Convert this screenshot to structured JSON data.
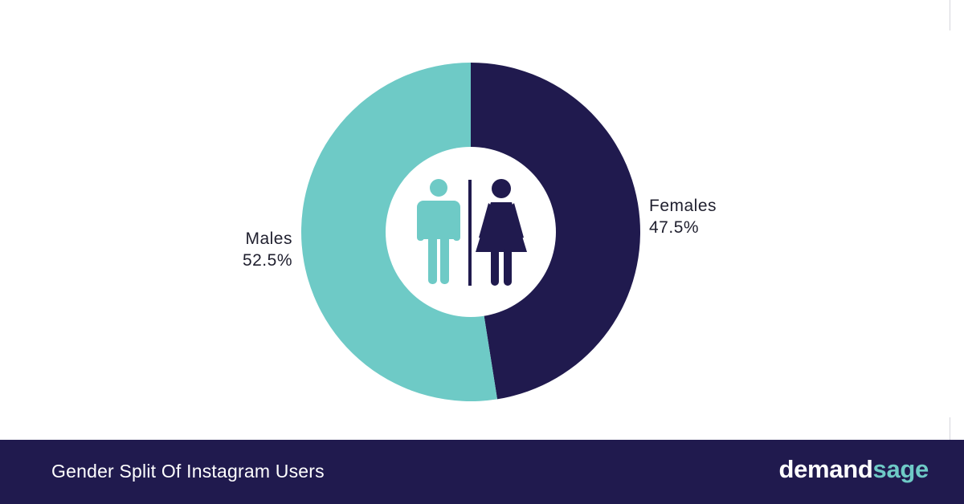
{
  "chart_data": {
    "type": "pie",
    "title": "Gender Split Of Instagram Users",
    "slices": [
      {
        "label": "Males",
        "value": 52.5,
        "display": "52.5%",
        "color": "#6ecac6"
      },
      {
        "label": "Females",
        "value": 47.5,
        "display": "47.5%",
        "color": "#201a4e"
      }
    ],
    "donut": true,
    "center_icons": [
      "male-figure-icon",
      "female-figure-icon"
    ]
  },
  "footer": {
    "title": "Gender Split Of Instagram Users",
    "brand_part1": "demand",
    "brand_part2": "sage"
  },
  "colors": {
    "teal": "#6ecac6",
    "navy": "#201a4e",
    "background": "#ffffff"
  }
}
